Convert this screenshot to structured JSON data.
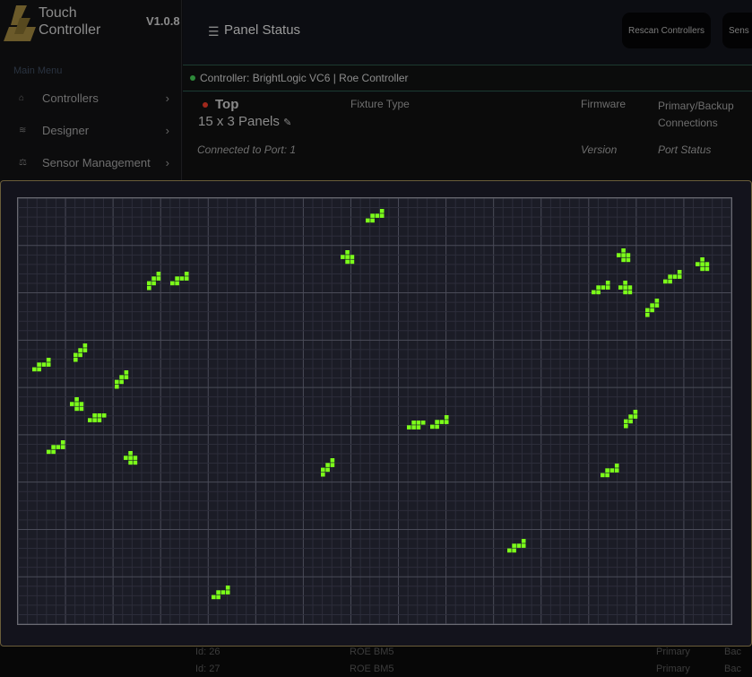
{
  "app": {
    "name_line1": "Touch",
    "name_line2": "Controller",
    "version": "V1.0.8"
  },
  "sidebar": {
    "heading": "Main Menu",
    "items": [
      {
        "label": "Controllers",
        "icon": "house-icon"
      },
      {
        "label": "Designer",
        "icon": "layers-icon"
      },
      {
        "label": "Sensor Management",
        "icon": "scale-icon"
      }
    ]
  },
  "header": {
    "title": "Panel Status",
    "buttons": [
      "Rescan Controllers",
      "Sens"
    ]
  },
  "controller": {
    "label": "Controller: BrightLogic VC6 | Roe Controller",
    "status_color": "#2e8b3a"
  },
  "panel": {
    "name": "Top",
    "status_color": "#a0281c",
    "size": "15 x 3 Panels",
    "port": "Connected to Port: 1",
    "columns": {
      "fixture": "Fixture Type",
      "firmware": "Firmware",
      "connections": "Primary/Backup Connections",
      "version": "Version",
      "port_status": "Port Status"
    }
  },
  "grid": {
    "columns": 15,
    "rows": 9,
    "pixel_color": "#7cff1a"
  },
  "rows_behind": [
    {
      "id": "Id: 26",
      "type": "ROE BM5",
      "conn": "Primary",
      "b": "Bac"
    },
    {
      "id": "Id: 27",
      "type": "ROE BM5",
      "conn": "Primary",
      "b": "Bac"
    }
  ]
}
